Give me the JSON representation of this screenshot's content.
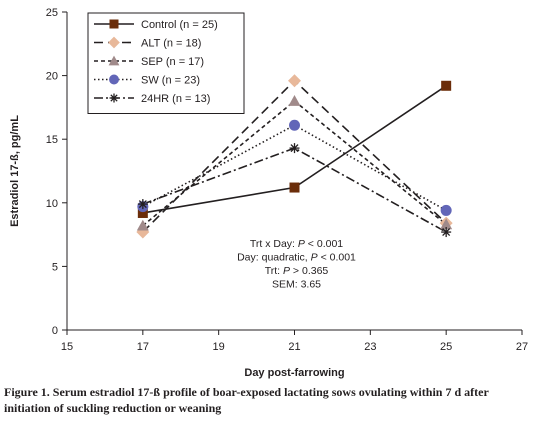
{
  "chart_data": {
    "type": "line",
    "xlabel": "Day post-farrowing",
    "ylabel": "Estradiol 17-ß, pg/mL",
    "xlim": [
      15,
      27
    ],
    "ylim": [
      0,
      25
    ],
    "x_ticks": [
      "15",
      "17",
      "19",
      "21",
      "23",
      "25",
      "27"
    ],
    "y_ticks": [
      "0",
      "5",
      "10",
      "15",
      "20",
      "25"
    ],
    "x": [
      17,
      21,
      25
    ],
    "series": [
      {
        "name": "Control (n = 25)",
        "values": [
          9.2,
          11.2,
          19.2
        ],
        "marker": "square",
        "line": "solid",
        "color": "#6b2d0a"
      },
      {
        "name": "ALT (n = 18)",
        "values": [
          7.7,
          19.6,
          8.4
        ],
        "marker": "diamond",
        "line": "long-dash",
        "color": "#e8b89a"
      },
      {
        "name": "SEP (n = 17)",
        "values": [
          8.2,
          18.0,
          8.3
        ],
        "marker": "triangle",
        "line": "short-dash",
        "color": "#a08a8a"
      },
      {
        "name": "SW (n = 23)",
        "values": [
          9.7,
          16.1,
          9.4
        ],
        "marker": "circle",
        "line": "dotted",
        "color": "#6266b8"
      },
      {
        "name": "24HR (n = 13)",
        "values": [
          9.9,
          14.3,
          7.7
        ],
        "marker": "asterisk",
        "line": "dash-dot",
        "color": "#231f20"
      }
    ],
    "annotations": [
      [
        {
          "t": "Trt x Day: ",
          "i": false
        },
        {
          "t": "P",
          "i": true
        },
        {
          "t": " < 0.001",
          "i": false
        }
      ],
      [
        {
          "t": "Day: quadratic, ",
          "i": false
        },
        {
          "t": "P",
          "i": true
        },
        {
          "t": " < 0.001",
          "i": false
        }
      ],
      [
        {
          "t": "Trt: ",
          "i": false
        },
        {
          "t": "P",
          "i": true
        },
        {
          "t": " > 0.365",
          "i": false
        }
      ],
      [
        {
          "t": "SEM: 3.65",
          "i": false
        }
      ]
    ],
    "legend_position": "top-left",
    "grid": false
  },
  "caption": "Figure 1. Serum estradiol 17-ß profile of boar-exposed lactating sows ovulating within 7 d after initiation of suckling reduction or weaning"
}
